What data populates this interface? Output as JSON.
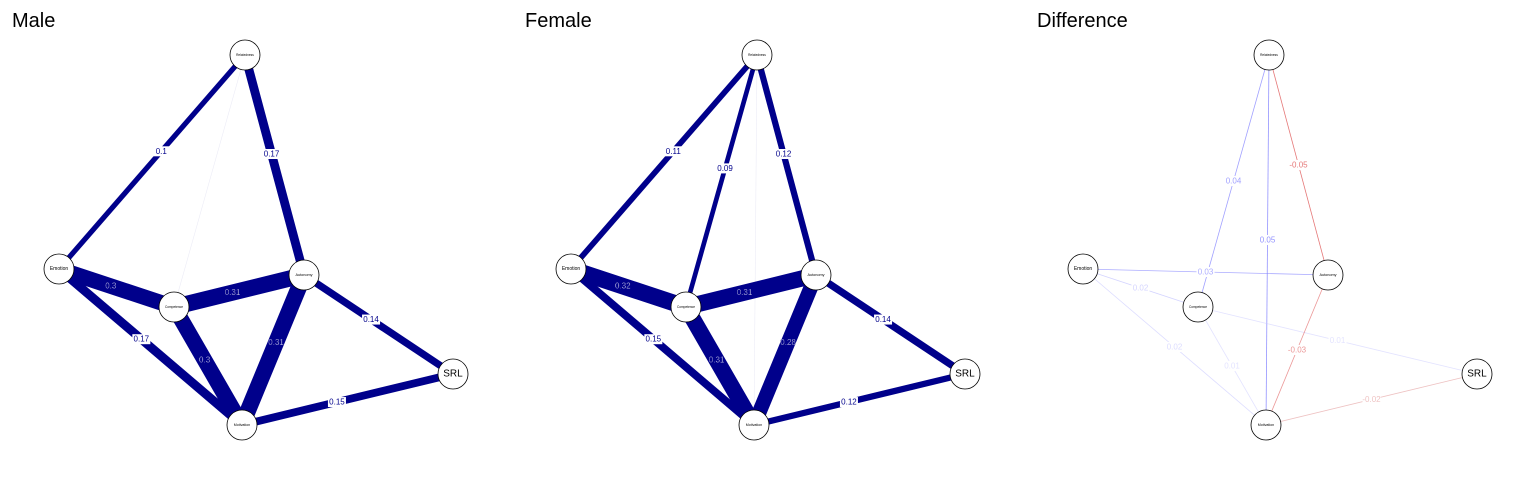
{
  "panels": [
    {
      "title": "Male",
      "nodes": [
        "Relatedness",
        "Emotion",
        "Competence",
        "Autonomy",
        "Motivation",
        "SRL"
      ],
      "edges": [
        {
          "from": "Relatedness",
          "to": "Emotion",
          "weight": 0.1,
          "label": "0.1",
          "color": "#00008b"
        },
        {
          "from": "Relatedness",
          "to": "Competence",
          "weight": 0.01,
          "label": "",
          "color": "#00008b"
        },
        {
          "from": "Relatedness",
          "to": "Autonomy",
          "weight": 0.17,
          "label": "0.17",
          "color": "#00008b"
        },
        {
          "from": "Emotion",
          "to": "Competence",
          "weight": 0.3,
          "label": "0.3",
          "color": "#00008b"
        },
        {
          "from": "Emotion",
          "to": "Motivation",
          "weight": 0.17,
          "label": "0.17",
          "color": "#00008b"
        },
        {
          "from": "Competence",
          "to": "Autonomy",
          "weight": 0.31,
          "label": "0.31",
          "color": "#00008b"
        },
        {
          "from": "Competence",
          "to": "Motivation",
          "weight": 0.3,
          "label": "0.3",
          "color": "#00008b"
        },
        {
          "from": "Autonomy",
          "to": "Motivation",
          "weight": 0.31,
          "label": "0.31",
          "color": "#00008b"
        },
        {
          "from": "Autonomy",
          "to": "SRL",
          "weight": 0.14,
          "label": "0.14",
          "color": "#00008b"
        },
        {
          "from": "Motivation",
          "to": "SRL",
          "weight": 0.15,
          "label": "0.15",
          "color": "#00008b"
        }
      ]
    },
    {
      "title": "Female",
      "nodes": [
        "Relatedness",
        "Emotion",
        "Competence",
        "Autonomy",
        "Motivation",
        "SRL"
      ],
      "edges": [
        {
          "from": "Relatedness",
          "to": "Emotion",
          "weight": 0.11,
          "label": "0.11",
          "color": "#00008b"
        },
        {
          "from": "Relatedness",
          "to": "Competence",
          "weight": 0.09,
          "label": "0.09",
          "color": "#00008b"
        },
        {
          "from": "Relatedness",
          "to": "Autonomy",
          "weight": 0.12,
          "label": "0.12",
          "color": "#00008b"
        },
        {
          "from": "Relatedness",
          "to": "Motivation",
          "weight": 0.01,
          "label": "",
          "color": "#00008b"
        },
        {
          "from": "Emotion",
          "to": "Competence",
          "weight": 0.32,
          "label": "0.32",
          "color": "#00008b"
        },
        {
          "from": "Emotion",
          "to": "Motivation",
          "weight": 0.15,
          "label": "0.15",
          "color": "#00008b"
        },
        {
          "from": "Competence",
          "to": "Autonomy",
          "weight": 0.31,
          "label": "0.31",
          "color": "#00008b"
        },
        {
          "from": "Competence",
          "to": "Motivation",
          "weight": 0.31,
          "label": "0.31",
          "color": "#00008b"
        },
        {
          "from": "Autonomy",
          "to": "Motivation",
          "weight": 0.28,
          "label": "0.28",
          "color": "#00008b"
        },
        {
          "from": "Autonomy",
          "to": "SRL",
          "weight": 0.14,
          "label": "0.14",
          "color": "#00008b"
        },
        {
          "from": "Motivation",
          "to": "SRL",
          "weight": 0.12,
          "label": "0.12",
          "color": "#00008b"
        }
      ]
    },
    {
      "title": "Difference",
      "nodes": [
        "Relatedness",
        "Emotion",
        "Competence",
        "Autonomy",
        "Motivation",
        "SRL"
      ],
      "edges": [
        {
          "from": "Relatedness",
          "to": "Competence",
          "weight": 0.04,
          "label": "0.04",
          "color": "#8080ff"
        },
        {
          "from": "Relatedness",
          "to": "Autonomy",
          "weight": -0.05,
          "label": "-0.05",
          "color": "#e06060"
        },
        {
          "from": "Relatedness",
          "to": "Motivation",
          "weight": 0.05,
          "label": "0.05",
          "color": "#8080ff"
        },
        {
          "from": "Emotion",
          "to": "Autonomy",
          "weight": 0.03,
          "label": "0.03",
          "color": "#8080ff"
        },
        {
          "from": "Emotion",
          "to": "Competence",
          "weight": 0.02,
          "label": "0.02",
          "color": "#b0b0ff"
        },
        {
          "from": "Emotion",
          "to": "Motivation",
          "weight": 0.02,
          "label": "0.02",
          "color": "#c0c0ff"
        },
        {
          "from": "Competence",
          "to": "Motivation",
          "weight": 0.01,
          "label": "0.01",
          "color": "#c0c0ff"
        },
        {
          "from": "Competence",
          "to": "SRL",
          "weight": 0.01,
          "label": "0.01",
          "color": "#c0c0ff"
        },
        {
          "from": "Autonomy",
          "to": "Motivation",
          "weight": -0.03,
          "label": "-0.03",
          "color": "#e06060"
        },
        {
          "from": "Motivation",
          "to": "SRL",
          "weight": -0.02,
          "label": "-0.02",
          "color": "#e09090"
        }
      ]
    }
  ]
}
